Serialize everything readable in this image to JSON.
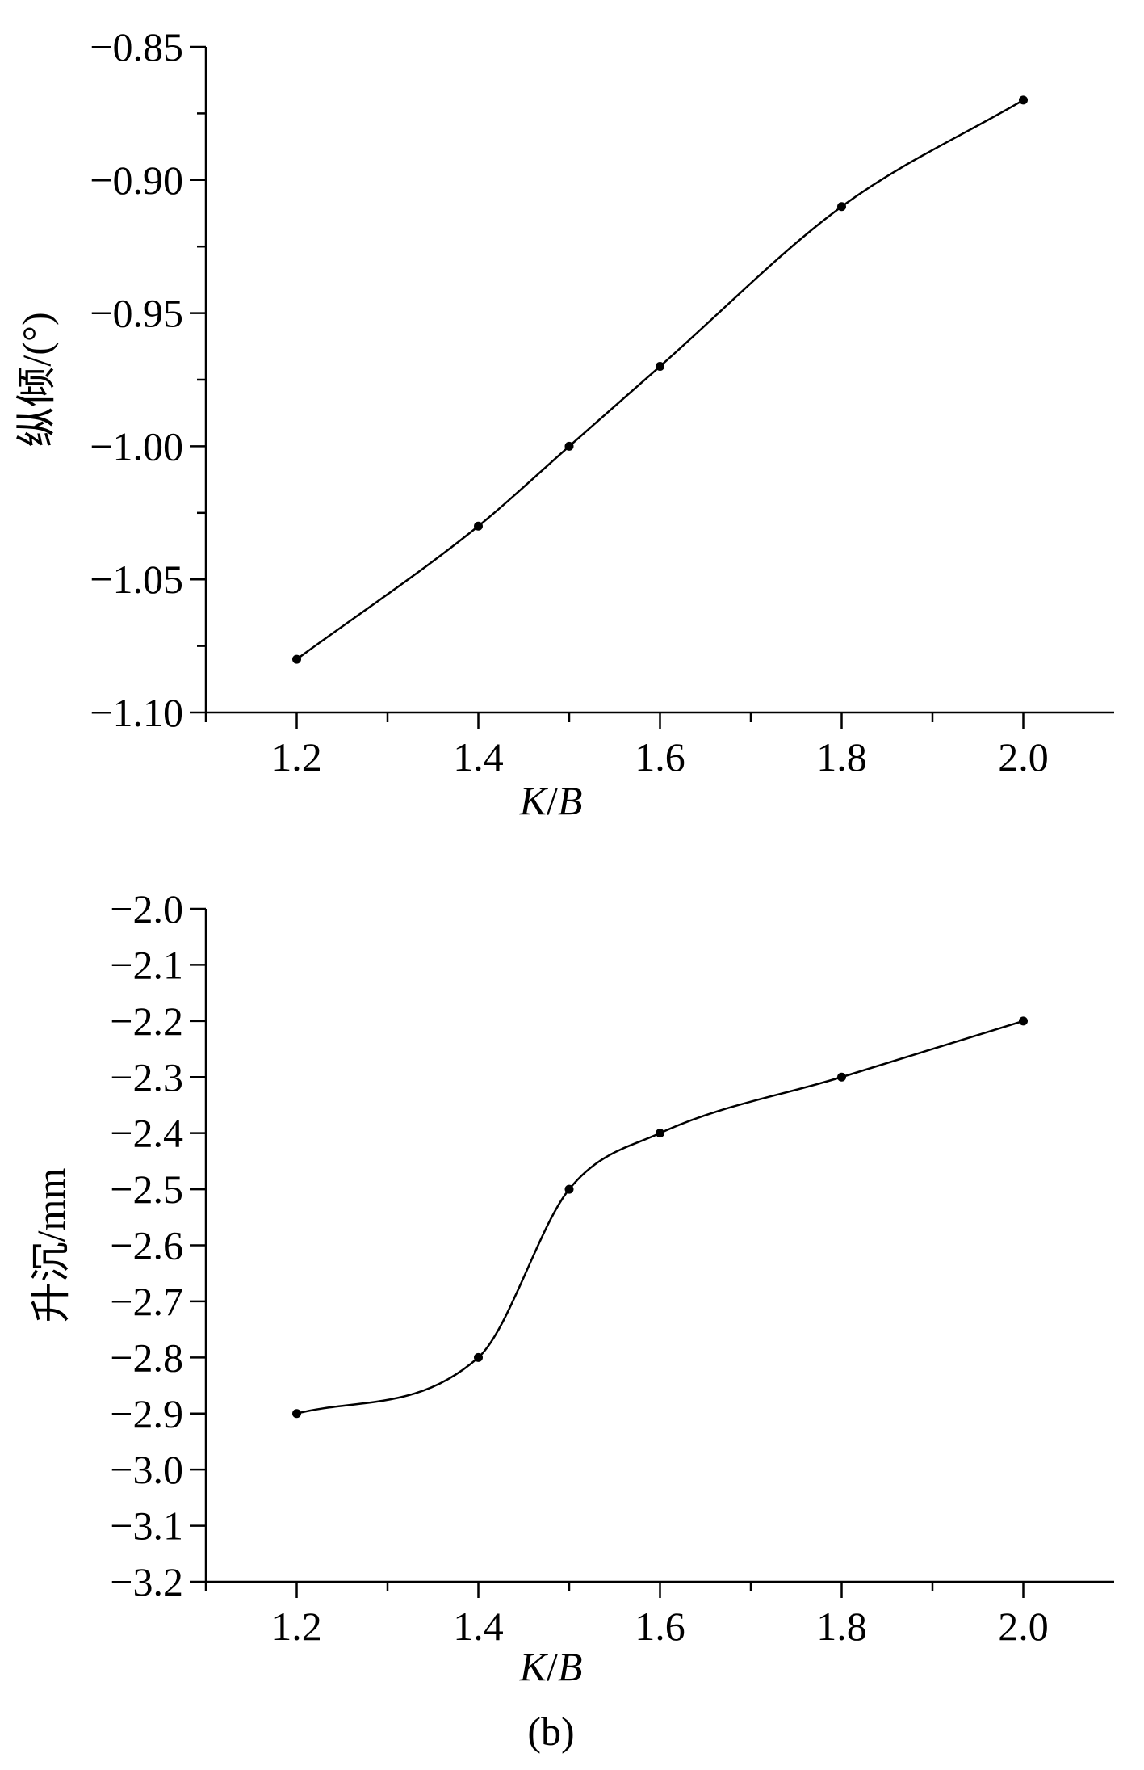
{
  "chart_data": [
    {
      "type": "line",
      "title": "",
      "xlabel": "K/B",
      "ylabel": "纵倾/(°)",
      "x": [
        1.2,
        1.4,
        1.5,
        1.6,
        1.8,
        2.0
      ],
      "series": [
        {
          "values": [
            -1.08,
            -1.03,
            -1.0,
            -0.97,
            -0.91,
            -0.87
          ]
        }
      ],
      "xlim": [
        1.1,
        2.1
      ],
      "ylim": [
        -1.1,
        -0.85
      ],
      "xticks": [
        "1.2",
        "1.4",
        "1.6",
        "1.8",
        "2.0"
      ],
      "yticks": [
        "-0.85",
        "-0.90",
        "-0.95",
        "-1.00",
        "-1.05",
        "-1.10"
      ],
      "markers": "points",
      "curve": "smooth fit",
      "grid": false,
      "legend": "none",
      "caption": ""
    },
    {
      "type": "line",
      "title": "",
      "xlabel": "K/B",
      "ylabel": "升沉/mm",
      "x": [
        1.2,
        1.4,
        1.5,
        1.6,
        1.8,
        2.0
      ],
      "series": [
        {
          "values": [
            -2.9,
            -2.8,
            -2.5,
            -2.4,
            -2.3,
            -2.2
          ]
        }
      ],
      "xlim": [
        1.1,
        2.1
      ],
      "ylim": [
        -3.2,
        -2.0
      ],
      "xticks": [
        "1.2",
        "1.4",
        "1.6",
        "1.8",
        "2.0"
      ],
      "yticks": [
        "-2.0",
        "-2.1",
        "-2.2",
        "-2.3",
        "-2.4",
        "-2.5",
        "-2.6",
        "-2.7",
        "-2.8",
        "-2.9",
        "-3.0",
        "-3.1",
        "-3.2"
      ],
      "markers": "points",
      "curve": "smooth fit",
      "grid": false,
      "legend": "none",
      "caption": "(b)"
    }
  ]
}
